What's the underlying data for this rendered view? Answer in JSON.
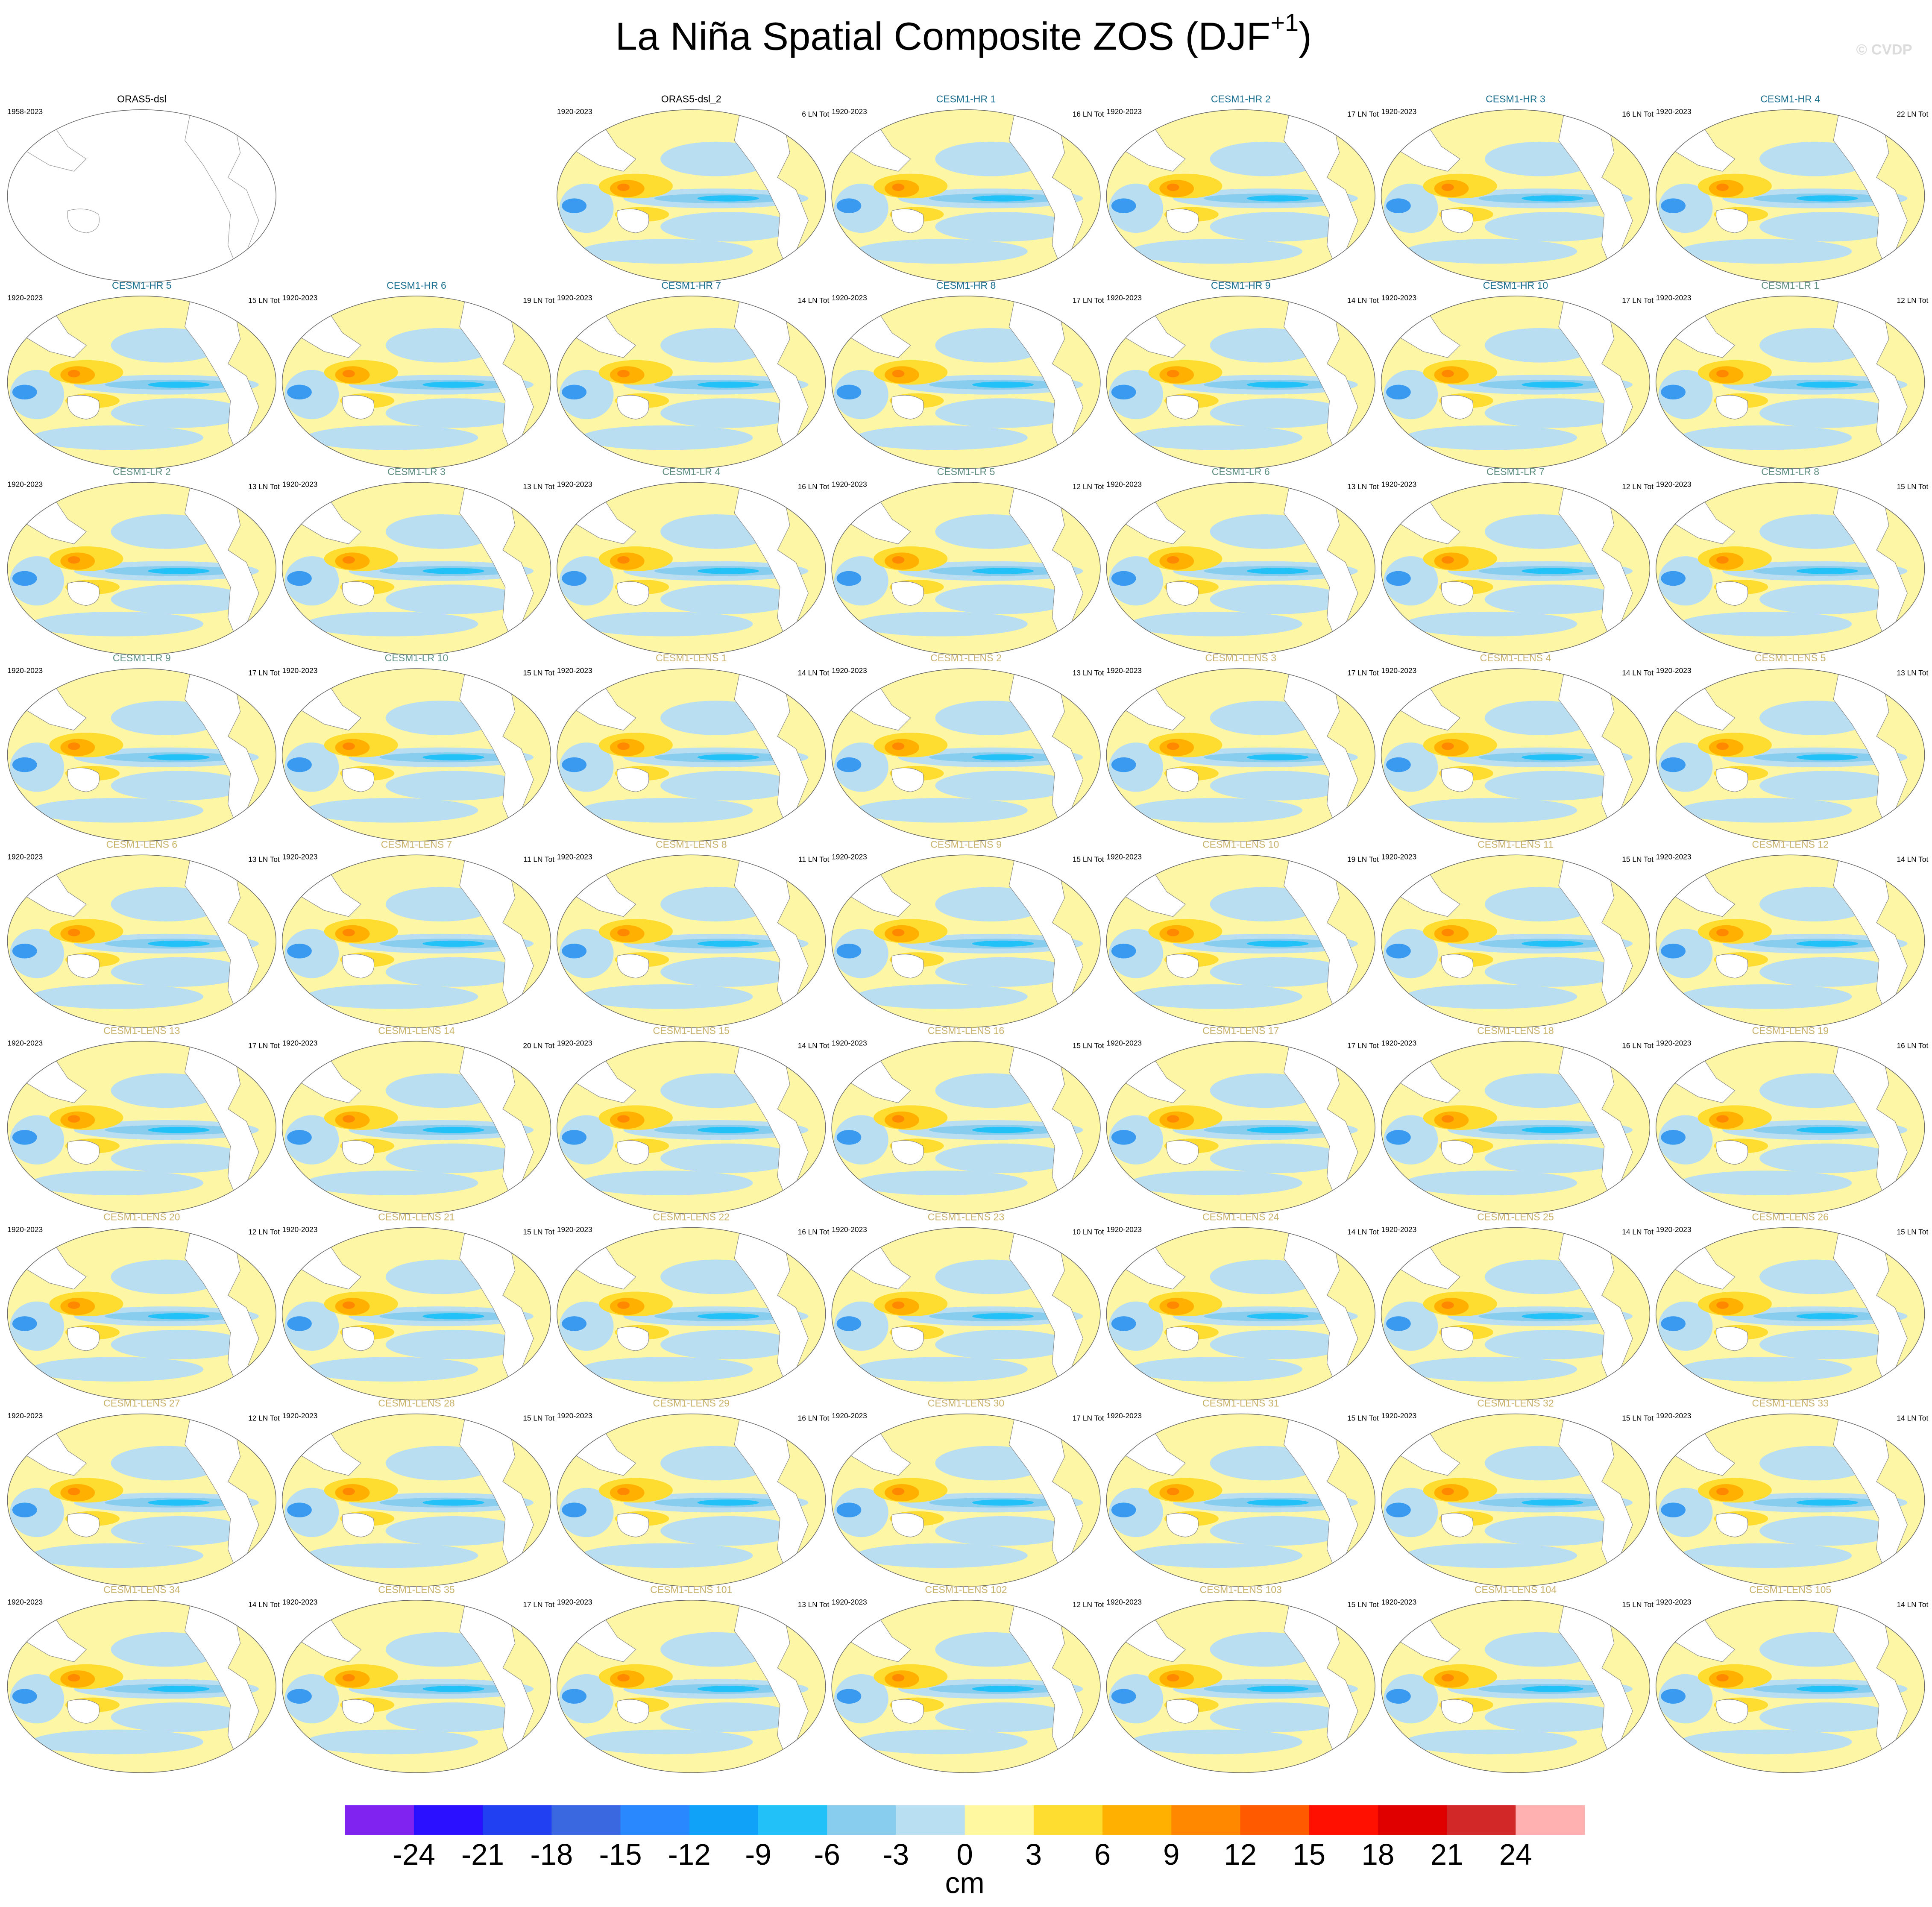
{
  "header": {
    "title": "La Niña Spatial Composite ZOS (DJF",
    "title_superscript": "+1",
    "title_end": ")",
    "watermark": "© CVDP"
  },
  "panels": [
    {
      "title": "ORAS5-dsl",
      "period": "1958-2023",
      "color": "#000000"
    },
    {
      "title": "ORAS5-dsl_2",
      "period": "1920-2023",
      "count": "6 LN Tot",
      "color": "#000000"
    },
    {
      "title": "CESM1-HR 1",
      "period": "1920-2023",
      "count": "16 LN Tot",
      "color": "#1b6f8f"
    },
    {
      "title": "CESM1-HR 2",
      "period": "1920-2023",
      "count": "17 LN Tot",
      "color": "#1b6f8f"
    },
    {
      "title": "CESM1-HR 3",
      "period": "1920-2023",
      "count": "16 LN Tot",
      "color": "#1b6f8f"
    },
    {
      "title": "CESM1-HR 4",
      "period": "1920-2023",
      "count": "22 LN Tot",
      "color": "#1b6f8f"
    },
    {
      "title": "CESM1-HR 5",
      "period": "1920-2023",
      "count": "15 LN Tot",
      "color": "#1b6f8f"
    },
    {
      "title": "CESM1-HR 6",
      "period": "1920-2023",
      "count": "19 LN Tot",
      "color": "#1b6f8f"
    },
    {
      "title": "CESM1-HR 7",
      "period": "1920-2023",
      "count": "14 LN Tot",
      "color": "#1b6f8f"
    },
    {
      "title": "CESM1-HR 8",
      "period": "1920-2023",
      "count": "17 LN Tot",
      "color": "#1b6f8f"
    },
    {
      "title": "CESM1-HR 9",
      "period": "1920-2023",
      "count": "14 LN Tot",
      "color": "#1b6f8f"
    },
    {
      "title": "CESM1-HR 10",
      "period": "1920-2023",
      "count": "17 LN Tot",
      "color": "#1b6f8f"
    },
    {
      "title": "CESM1-LR 1",
      "period": "1920-2023",
      "count": "12 LN Tot",
      "color": "#5e8f80"
    },
    {
      "title": "CESM1-LR 2",
      "period": "1920-2023",
      "count": "13 LN Tot",
      "color": "#5e8f80"
    },
    {
      "title": "CESM1-LR 3",
      "period": "1920-2023",
      "count": "13 LN Tot",
      "color": "#5e8f80"
    },
    {
      "title": "CESM1-LR 4",
      "period": "1920-2023",
      "count": "16 LN Tot",
      "color": "#5e8f80"
    },
    {
      "title": "CESM1-LR 5",
      "period": "1920-2023",
      "count": "12 LN Tot",
      "color": "#5e8f80"
    },
    {
      "title": "CESM1-LR 6",
      "period": "1920-2023",
      "count": "13 LN Tot",
      "color": "#5e8f80"
    },
    {
      "title": "CESM1-LR 7",
      "period": "1920-2023",
      "count": "12 LN Tot",
      "color": "#5e8f80"
    },
    {
      "title": "CESM1-LR 8",
      "period": "1920-2023",
      "count": "15 LN Tot",
      "color": "#5e8f80"
    },
    {
      "title": "CESM1-LR 9",
      "period": "1920-2023",
      "count": "17 LN Tot",
      "color": "#5e8f80"
    },
    {
      "title": "CESM1-LR 10",
      "period": "1920-2023",
      "count": "15 LN Tot",
      "color": "#5e8f80"
    },
    {
      "title": "CESM1-LENS 1",
      "period": "1920-2023",
      "count": "14 LN Tot",
      "color": "#c9b26a"
    },
    {
      "title": "CESM1-LENS 2",
      "period": "1920-2023",
      "count": "13 LN Tot",
      "color": "#c9b26a"
    },
    {
      "title": "CESM1-LENS 3",
      "period": "1920-2023",
      "count": "17 LN Tot",
      "color": "#c9b26a"
    },
    {
      "title": "CESM1-LENS 4",
      "period": "1920-2023",
      "count": "14 LN Tot",
      "color": "#c9b26a"
    },
    {
      "title": "CESM1-LENS 5",
      "period": "1920-2023",
      "count": "13 LN Tot",
      "color": "#c9b26a"
    },
    {
      "title": "CESM1-LENS 6",
      "period": "1920-2023",
      "count": "13 LN Tot",
      "color": "#c9b26a"
    },
    {
      "title": "CESM1-LENS 7",
      "period": "1920-2023",
      "count": "11 LN Tot",
      "color": "#c9b26a"
    },
    {
      "title": "CESM1-LENS 8",
      "period": "1920-2023",
      "count": "11 LN Tot",
      "color": "#c9b26a"
    },
    {
      "title": "CESM1-LENS 9",
      "period": "1920-2023",
      "count": "15 LN Tot",
      "color": "#c9b26a"
    },
    {
      "title": "CESM1-LENS 10",
      "period": "1920-2023",
      "count": "19 LN Tot",
      "color": "#c9b26a"
    },
    {
      "title": "CESM1-LENS 11",
      "period": "1920-2023",
      "count": "15 LN Tot",
      "color": "#c9b26a"
    },
    {
      "title": "CESM1-LENS 12",
      "period": "1920-2023",
      "count": "14 LN Tot",
      "color": "#c9b26a"
    },
    {
      "title": "CESM1-LENS 13",
      "period": "1920-2023",
      "count": "17 LN Tot",
      "color": "#c9b26a"
    },
    {
      "title": "CESM1-LENS 14",
      "period": "1920-2023",
      "count": "20 LN Tot",
      "color": "#c9b26a"
    },
    {
      "title": "CESM1-LENS 15",
      "period": "1920-2023",
      "count": "14 LN Tot",
      "color": "#c9b26a"
    },
    {
      "title": "CESM1-LENS 16",
      "period": "1920-2023",
      "count": "15 LN Tot",
      "color": "#c9b26a"
    },
    {
      "title": "CESM1-LENS 17",
      "period": "1920-2023",
      "count": "17 LN Tot",
      "color": "#c9b26a"
    },
    {
      "title": "CESM1-LENS 18",
      "period": "1920-2023",
      "count": "16 LN Tot",
      "color": "#c9b26a"
    },
    {
      "title": "CESM1-LENS 19",
      "period": "1920-2023",
      "count": "16 LN Tot",
      "color": "#c9b26a"
    },
    {
      "title": "CESM1-LENS 20",
      "period": "1920-2023",
      "count": "12 LN Tot",
      "color": "#c9b26a"
    },
    {
      "title": "CESM1-LENS 21",
      "period": "1920-2023",
      "count": "15 LN Tot",
      "color": "#c9b26a"
    },
    {
      "title": "CESM1-LENS 22",
      "period": "1920-2023",
      "count": "16 LN Tot",
      "color": "#c9b26a"
    },
    {
      "title": "CESM1-LENS 23",
      "period": "1920-2023",
      "count": "10 LN Tot",
      "color": "#c9b26a"
    },
    {
      "title": "CESM1-LENS 24",
      "period": "1920-2023",
      "count": "14 LN Tot",
      "color": "#c9b26a"
    },
    {
      "title": "CESM1-LENS 25",
      "period": "1920-2023",
      "count": "14 LN Tot",
      "color": "#c9b26a"
    },
    {
      "title": "CESM1-LENS 26",
      "period": "1920-2023",
      "count": "15 LN Tot",
      "color": "#c9b26a"
    },
    {
      "title": "CESM1-LENS 27",
      "period": "1920-2023",
      "count": "12 LN Tot",
      "color": "#c9b26a"
    },
    {
      "title": "CESM1-LENS 28",
      "period": "1920-2023",
      "count": "15 LN Tot",
      "color": "#c9b26a"
    },
    {
      "title": "CESM1-LENS 29",
      "period": "1920-2023",
      "count": "16 LN Tot",
      "color": "#c9b26a"
    },
    {
      "title": "CESM1-LENS 30",
      "period": "1920-2023",
      "count": "17 LN Tot",
      "color": "#c9b26a"
    },
    {
      "title": "CESM1-LENS 31",
      "period": "1920-2023",
      "count": "15 LN Tot",
      "color": "#c9b26a"
    },
    {
      "title": "CESM1-LENS 32",
      "period": "1920-2023",
      "count": "15 LN Tot",
      "color": "#c9b26a"
    },
    {
      "title": "CESM1-LENS 33",
      "period": "1920-2023",
      "count": "14 LN Tot",
      "color": "#c9b26a"
    },
    {
      "title": "CESM1-LENS 34",
      "period": "1920-2023",
      "count": "14 LN Tot",
      "color": "#c9b26a"
    },
    {
      "title": "CESM1-LENS 35",
      "period": "1920-2023",
      "count": "17 LN Tot",
      "color": "#c9b26a"
    },
    {
      "title": "CESM1-LENS 101",
      "period": "1920-2023",
      "count": "13 LN Tot",
      "color": "#c9b26a"
    },
    {
      "title": "CESM1-LENS 102",
      "period": "1920-2023",
      "count": "12 LN Tot",
      "color": "#c9b26a"
    },
    {
      "title": "CESM1-LENS 103",
      "period": "1920-2023",
      "count": "15 LN Tot",
      "color": "#c9b26a"
    },
    {
      "title": "CESM1-LENS 104",
      "period": "1920-2023",
      "count": "15 LN Tot",
      "color": "#c9b26a"
    },
    {
      "title": "CESM1-LENS 105",
      "period": "1920-2023",
      "count": "14 LN Tot",
      "color": "#c9b26a"
    }
  ],
  "colorbar": {
    "colors": [
      "#8022f0",
      "#2a10ff",
      "#2040f2",
      "#3a68e0",
      "#2a88ff",
      "#10a2f8",
      "#22c2f8",
      "#88ccee",
      "#b8e0f2",
      "#fff8a0",
      "#ffdc30",
      "#ffb000",
      "#ff8800",
      "#ff5a00",
      "#ff1000",
      "#e00000",
      "#d22828",
      "#ffb0b0"
    ],
    "ticks": [
      -24,
      -21,
      -18,
      -15,
      -12,
      -9,
      -6,
      -3,
      0,
      3,
      6,
      9,
      12,
      15,
      18,
      21,
      24
    ],
    "label": "cm"
  }
}
